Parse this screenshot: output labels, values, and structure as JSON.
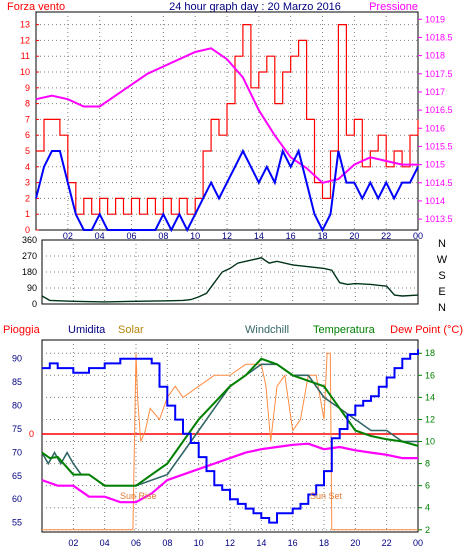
{
  "colors": {
    "wind": "#ff0000",
    "wind_avg": "#0000ff",
    "pressure": "#ff00ff",
    "direction": "#003319",
    "rain": "#ff0000",
    "humidity": "#0000ff",
    "solar": "#ff8c40",
    "windchill": "#336666",
    "temperature": "#008000",
    "dewpoint": "#ff00ff",
    "axis_blue": "#000080",
    "grid": "#808080"
  },
  "chart_data": [
    {
      "type": "line",
      "title": "24 hour graph day : 20 Marzo 2016",
      "left_label": "Forza vento",
      "right_label": "Pressione",
      "x_ticks": [
        "02",
        "04",
        "06",
        "08",
        "10",
        "12",
        "14",
        "16",
        "18",
        "20",
        "22",
        "00"
      ],
      "y_left_ticks": [
        "0",
        "1",
        "2",
        "3",
        "4",
        "5",
        "6",
        "7",
        "8",
        "9",
        "10",
        "11",
        "12",
        "13"
      ],
      "y_right_ticks": [
        "1013.5",
        "1014",
        "1014.5",
        "1015",
        "1015.5",
        "1016",
        "1016.5",
        "1017",
        "1017.5",
        "1018",
        "1018.5",
        "1019"
      ],
      "y_left_range": [
        0,
        13.8
      ],
      "y_right_range": [
        1013.2,
        1019.2
      ],
      "x_range": [
        0,
        24
      ],
      "series": [
        {
          "key": "wind",
          "x": [
            0,
            0.5,
            1,
            1.5,
            2,
            2.5,
            3,
            3.5,
            4,
            4.5,
            5,
            5.5,
            6,
            6.5,
            7,
            7.5,
            8,
            8.5,
            9,
            9.5,
            10,
            10.5,
            11,
            11.5,
            12,
            12.5,
            13,
            13.5,
            14,
            14.5,
            15,
            15.5,
            16,
            16.5,
            17,
            17.5,
            18,
            18.5,
            19,
            19.5,
            20,
            20.5,
            21,
            21.5,
            22,
            22.5,
            23,
            23.5,
            24
          ],
          "y": [
            5,
            7,
            7,
            6,
            3,
            1,
            2,
            1,
            2,
            1,
            2,
            1,
            2,
            1,
            2,
            1,
            2,
            1,
            2,
            1,
            2,
            5,
            7,
            6,
            8,
            11,
            13,
            9,
            10,
            11,
            8,
            10,
            11,
            12,
            7,
            3,
            2,
            5,
            13,
            6,
            7,
            4,
            5,
            6,
            4,
            5,
            4,
            6,
            7
          ]
        },
        {
          "key": "wind_avg",
          "x": [
            0,
            0.5,
            1,
            1.5,
            2,
            2.5,
            3,
            3.5,
            4,
            4.5,
            5,
            5.5,
            6,
            6.5,
            7,
            7.5,
            8,
            8.5,
            9,
            9.5,
            10,
            10.5,
            11,
            11.5,
            12,
            12.5,
            13,
            13.5,
            14,
            14.5,
            15,
            15.5,
            16,
            16.5,
            17,
            17.5,
            18,
            18.5,
            19,
            19.5,
            20,
            20.5,
            21,
            21.5,
            22,
            22.5,
            23,
            23.5,
            24
          ],
          "y": [
            2,
            4,
            5,
            5,
            3,
            1,
            0,
            0,
            1,
            0,
            0,
            0,
            0,
            0,
            0,
            0,
            1,
            0,
            1,
            0,
            1,
            2,
            3,
            2,
            3,
            4,
            5,
            4,
            3,
            4,
            3,
            5,
            4,
            5,
            3,
            1,
            0,
            1,
            5,
            3,
            3,
            2,
            3,
            2,
            3,
            2,
            3,
            3,
            4
          ]
        },
        {
          "key": "pressure",
          "x": [
            0,
            1,
            2,
            3,
            4,
            5,
            6,
            7,
            8,
            9,
            10,
            11,
            12,
            13,
            14,
            15,
            16,
            17,
            18,
            19,
            20,
            21,
            22,
            23,
            24
          ],
          "y": [
            1016.8,
            1016.9,
            1016.8,
            1016.6,
            1016.6,
            1016.9,
            1017.2,
            1017.5,
            1017.7,
            1017.9,
            1018.1,
            1018.2,
            1017.9,
            1017.4,
            1016.5,
            1015.8,
            1015.2,
            1014.9,
            1014.5,
            1014.6,
            1015.0,
            1015.2,
            1015.1,
            1015.0,
            1015.0
          ]
        }
      ]
    },
    {
      "type": "line",
      "right_labels": [
        "N",
        "W",
        "S",
        "E",
        "N"
      ],
      "y_ticks": [
        "0",
        "90",
        "180",
        "270",
        "360"
      ],
      "y_range": [
        0,
        360
      ],
      "x_range": [
        0,
        24
      ],
      "series": [
        {
          "key": "direction",
          "x": [
            0,
            0.5,
            2,
            4,
            6,
            8,
            9,
            9.5,
            10,
            10.5,
            11,
            11.5,
            12,
            12.5,
            13,
            13.5,
            14,
            14.5,
            15,
            16,
            17,
            18,
            18.5,
            19,
            19.5,
            20,
            21,
            22,
            22.5,
            23,
            24
          ],
          "y": [
            45,
            20,
            15,
            12,
            15,
            18,
            20,
            25,
            40,
            60,
            120,
            180,
            200,
            230,
            240,
            250,
            260,
            230,
            240,
            220,
            210,
            200,
            190,
            120,
            110,
            115,
            110,
            100,
            50,
            45,
            50
          ]
        }
      ]
    },
    {
      "type": "line",
      "header_labels": [
        "Pioggia",
        "Umidita",
        "Solar",
        "Windchill",
        "Temperatura",
        "Dew Point (°C)"
      ],
      "y_left_ticks": [
        "55",
        "60",
        "65",
        "70",
        "75",
        "80",
        "85",
        "90"
      ],
      "y_right_ticks": [
        "2",
        "4",
        "6",
        "8",
        "10",
        "12",
        "14",
        "16",
        "18"
      ],
      "rain_value_label": "0",
      "x_ticks": [
        "02",
        "04",
        "06",
        "08",
        "10",
        "12",
        "14",
        "16",
        "18",
        "20",
        "22",
        "00"
      ],
      "annotations": [
        "Sun Rise",
        "Sun Set"
      ],
      "y_left_range": [
        53,
        94
      ],
      "y_right_range": [
        1.8,
        19.2
      ],
      "x_range": [
        0,
        24
      ],
      "rain": [
        0,
        0
      ],
      "series": [
        {
          "key": "humidity",
          "x": [
            0,
            0.5,
            1,
            2,
            3,
            4,
            5,
            6,
            6.5,
            7,
            7.5,
            8,
            8.5,
            9,
            9.5,
            10,
            10.5,
            11,
            11.5,
            12,
            12.5,
            13,
            13.5,
            14,
            14.5,
            15,
            15.5,
            16,
            16.5,
            17,
            17.5,
            18,
            18.5,
            19,
            19.5,
            20,
            20.5,
            21,
            21.5,
            22,
            22.5,
            23,
            23.5,
            24
          ],
          "y": [
            88,
            89,
            88,
            87,
            88,
            89,
            90,
            90,
            90,
            89,
            84,
            80,
            77,
            74,
            72,
            69,
            66,
            63,
            62,
            60,
            59,
            58,
            57,
            56,
            55,
            57,
            57,
            58,
            59,
            61,
            63,
            66,
            73,
            75,
            78,
            80,
            81,
            82,
            84,
            86,
            88,
            90,
            91,
            92
          ]
        },
        {
          "key": "solar",
          "x": [
            0,
            5.8,
            6,
            6.1,
            6.3,
            6.6,
            6.9,
            7.5,
            8,
            8.5,
            9,
            10,
            11,
            12,
            13,
            14,
            14.3,
            14.6,
            15,
            15.5,
            16,
            16.5,
            17,
            17.5,
            18,
            18.2,
            18.4,
            18.5,
            24
          ],
          "y": [
            2,
            2,
            18,
            14,
            10,
            11,
            13,
            12,
            14,
            15,
            14,
            15,
            16,
            16,
            17,
            17,
            15,
            10,
            15,
            16,
            11,
            12,
            16,
            16,
            12,
            18,
            18,
            2,
            2
          ]
        },
        {
          "key": "windchill",
          "x": [
            0,
            0.4,
            0.8,
            1.2,
            1.6,
            2,
            2.5,
            3,
            4,
            6,
            7,
            8,
            9,
            10,
            11,
            12,
            13,
            14,
            15,
            16,
            17,
            18,
            19,
            20,
            21,
            22,
            23,
            24
          ],
          "y": [
            9,
            8,
            9,
            8,
            9,
            8,
            7,
            7,
            6,
            6,
            6.5,
            7,
            9,
            11,
            13,
            15,
            16,
            17,
            17,
            16,
            16,
            14,
            13,
            12,
            11,
            11,
            10,
            10
          ]
        },
        {
          "key": "temperature",
          "x": [
            0,
            0.5,
            1,
            2,
            3,
            4,
            5,
            6,
            7,
            8,
            9,
            10,
            11,
            12,
            13,
            14,
            15,
            16,
            17,
            18,
            19,
            20,
            21,
            22,
            23,
            24
          ],
          "y": [
            9,
            8.5,
            8.6,
            7,
            7,
            6,
            6,
            6,
            7,
            8,
            10,
            12,
            13.5,
            15,
            16,
            17.5,
            17,
            16,
            15.5,
            15,
            13,
            11,
            10.5,
            10.2,
            10,
            9.6
          ]
        },
        {
          "key": "dewpoint",
          "x": [
            0,
            1,
            2,
            3,
            4,
            5,
            6,
            7,
            8,
            9,
            10,
            11,
            12,
            13,
            14,
            15,
            16,
            17,
            18,
            19,
            20,
            21,
            22,
            23,
            24
          ],
          "y": [
            6.5,
            6,
            6,
            5,
            5,
            4.5,
            4.5,
            5.3,
            6.5,
            7,
            7.5,
            8,
            8.5,
            9,
            9.3,
            9.5,
            9.7,
            9.8,
            9.3,
            9.5,
            9.2,
            9,
            8.8,
            8.5,
            8.5
          ]
        }
      ]
    }
  ]
}
